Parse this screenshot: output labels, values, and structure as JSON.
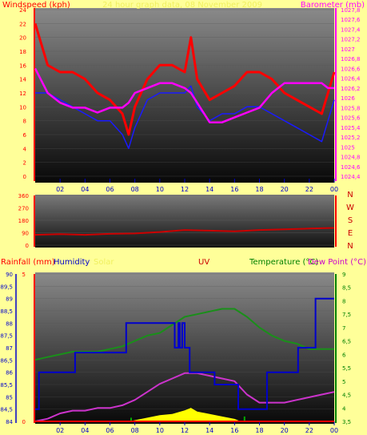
{
  "colors": {
    "background": "#ffff99",
    "wind_avg": "#1a1aff",
    "wind_gust": "#ff0000",
    "barometer": "#ff00ff",
    "direction": "#cc0000",
    "temperature": "#1a8f1a",
    "dew_point": "#cc33cc",
    "humidity": "#0000cc",
    "rainfall": "#ff0000",
    "solar": "#ffff00",
    "uv": "#00aa00",
    "title_faded": "#f0f060"
  },
  "chart_data": [
    {
      "type": "line",
      "panel": "wind_pressure",
      "title": "24 hour graph data, 08 November 2009",
      "ylabel_left": "Windspeed (kph)",
      "ylabel_right": "Barometer (mb)",
      "x_ticks": [
        "02",
        "04",
        "06",
        "08",
        "10",
        "12",
        "14",
        "16",
        "18",
        "20",
        "22",
        "00"
      ],
      "y_left_ticks": [
        "0",
        "2",
        "4",
        "6",
        "8",
        "10",
        "12",
        "14",
        "16",
        "18",
        "20",
        "22",
        "24"
      ],
      "y_left_range": [
        0,
        24
      ],
      "y_right_ticks": [
        "1024,4",
        "1024,6",
        "1024,8",
        "1025",
        "1025,2",
        "1025,4",
        "1025,6",
        "1025,8",
        "1026",
        "1026,2",
        "1026,4",
        "1026,6",
        "1026,8",
        "1027",
        "1027,2",
        "1027,4",
        "1027,6",
        "1027,8"
      ],
      "y_right_range": [
        1024.4,
        1027.8
      ],
      "x_hours": [
        0,
        1,
        2,
        3,
        4,
        5,
        6,
        7,
        7.5,
        8,
        9,
        10,
        11,
        12,
        12.5,
        13,
        14,
        15,
        16,
        17,
        18,
        19,
        20,
        21,
        22,
        23,
        23.5,
        24
      ],
      "series": [
        {
          "name": "gust",
          "axis": "left",
          "color_key": "wind_gust",
          "values": [
            22,
            16,
            15,
            15,
            14,
            12,
            11,
            9,
            6,
            10,
            14,
            16,
            16,
            15,
            20,
            14,
            11,
            12,
            13,
            15,
            15,
            14,
            12,
            11,
            10,
            9,
            12,
            15
          ]
        },
        {
          "name": "average",
          "axis": "left",
          "color_key": "wind_avg",
          "values": [
            12,
            12,
            11,
            10,
            9,
            8,
            8,
            6,
            4,
            7,
            11,
            12,
            12,
            12,
            13,
            10,
            8,
            9,
            9,
            10,
            10,
            9,
            8,
            7,
            6,
            5,
            8,
            11
          ]
        },
        {
          "name": "barometer",
          "axis": "right",
          "color_key": "barometer",
          "values": [
            1026.6,
            1026.1,
            1025.9,
            1025.8,
            1025.8,
            1025.7,
            1025.8,
            1025.8,
            1025.9,
            1026.1,
            1026.2,
            1026.3,
            1026.3,
            1026.2,
            1026.1,
            1025.9,
            1025.5,
            1025.5,
            1025.6,
            1025.7,
            1025.8,
            1026.1,
            1026.3,
            1026.3,
            1026.3,
            1026.3,
            1026.2,
            1026.2
          ]
        }
      ]
    },
    {
      "type": "line",
      "panel": "wind_direction",
      "y_left_ticks": [
        "0",
        "90",
        "180",
        "270",
        "360"
      ],
      "y_left_range": [
        0,
        360
      ],
      "y_right_ticks": [
        "N",
        "W",
        "S",
        "E",
        "N"
      ],
      "x_hours": [
        0,
        2,
        4,
        6,
        8,
        10,
        12,
        14,
        16,
        18,
        20,
        22,
        24
      ],
      "series": [
        {
          "name": "direction",
          "color_key": "direction",
          "values": [
            75,
            80,
            75,
            82,
            85,
            95,
            110,
            105,
            100,
            110,
            115,
            120,
            125
          ]
        }
      ]
    },
    {
      "type": "line",
      "panel": "temp_rain",
      "ylabel_left": "Rainfall (mm)",
      "label_humidity": "Humidity",
      "label_solar": "Solar",
      "label_uv": "UV",
      "ylabel_right": "Temperature (°C)",
      "label_dewpoint": "Dew Point (°C)",
      "x_ticks": [
        "02",
        "04",
        "06",
        "08",
        "10",
        "12",
        "14",
        "16",
        "18",
        "20",
        "22",
        "00"
      ],
      "humidity_ticks": [
        "84",
        "84,5",
        "85",
        "85,5",
        "86",
        "86,5",
        "87",
        "87,5",
        "88",
        "88,5",
        "89",
        "89,5",
        "90"
      ],
      "humidity_range": [
        84,
        90
      ],
      "rain_ticks": [
        "0",
        "5"
      ],
      "temp_ticks": [
        "3,5",
        "4",
        "4,5",
        "5",
        "5,5",
        "6",
        "6,5",
        "7",
        "7,5",
        "8",
        "8,5",
        "9"
      ],
      "temp_range": [
        3.5,
        9
      ],
      "series": [
        {
          "name": "temperature",
          "axis": "right",
          "color_key": "temperature",
          "x": [
            0,
            1,
            2,
            3,
            4,
            5,
            6,
            7,
            8,
            9,
            10,
            11,
            12,
            13,
            14,
            15,
            16,
            17,
            18,
            19,
            20,
            21,
            22,
            23,
            24
          ],
          "values": [
            5.8,
            5.9,
            6.0,
            6.1,
            6.1,
            6.1,
            6.2,
            6.3,
            6.5,
            6.7,
            6.8,
            7.1,
            7.4,
            7.5,
            7.6,
            7.7,
            7.7,
            7.4,
            7.0,
            6.7,
            6.5,
            6.4,
            6.2,
            6.2,
            6.2
          ]
        },
        {
          "name": "dew_point",
          "axis": "right",
          "color_key": "dew_point",
          "x": [
            0,
            1,
            2,
            3,
            4,
            5,
            6,
            7,
            8,
            9,
            10,
            11,
            12,
            13,
            14,
            15,
            16,
            17,
            18,
            19,
            20,
            21,
            22,
            23,
            24
          ],
          "values": [
            3.5,
            3.6,
            3.8,
            3.9,
            3.9,
            4.0,
            4.0,
            4.1,
            4.3,
            4.6,
            4.9,
            5.1,
            5.3,
            5.3,
            5.2,
            5.1,
            5.0,
            4.5,
            4.2,
            4.2,
            4.2,
            4.3,
            4.4,
            4.5,
            4.6
          ]
        },
        {
          "name": "humidity",
          "axis": "left",
          "color_key": "humidity",
          "x": [
            0,
            0.3,
            1.5,
            3.2,
            4.1,
            7.3,
            9.8,
            11.2,
            11.5,
            11.6,
            11.8,
            12.0,
            12.4,
            14.2,
            14.4,
            15.8,
            16.3,
            17.2,
            18.6,
            21.1,
            22.5,
            24
          ],
          "values": [
            84.5,
            86.0,
            86.0,
            86.8,
            86.8,
            88.0,
            88.0,
            87.0,
            88.0,
            87.0,
            88.0,
            87.0,
            86.0,
            86.0,
            85.5,
            85.5,
            84.5,
            84.5,
            86.0,
            87.0,
            89.0,
            89.0
          ]
        },
        {
          "name": "solar",
          "axis": "left",
          "color_key": "solar",
          "x": [
            7.5,
            8,
            9,
            10,
            11,
            12,
            12.5,
            13,
            14,
            15,
            16,
            16.5
          ],
          "values": [
            84,
            84.05,
            84.15,
            84.25,
            84.3,
            84.45,
            84.55,
            84.4,
            84.3,
            84.2,
            84.1,
            84
          ]
        },
        {
          "name": "uv",
          "axis": "left",
          "color_key": "uv",
          "x": [
            7.7,
            16.8
          ],
          "values": [
            84.15,
            84.2
          ]
        },
        {
          "name": "rainfall",
          "axis": "rain",
          "color_key": "rainfall",
          "x": [
            0,
            24
          ],
          "values": [
            0,
            0
          ]
        }
      ]
    }
  ]
}
